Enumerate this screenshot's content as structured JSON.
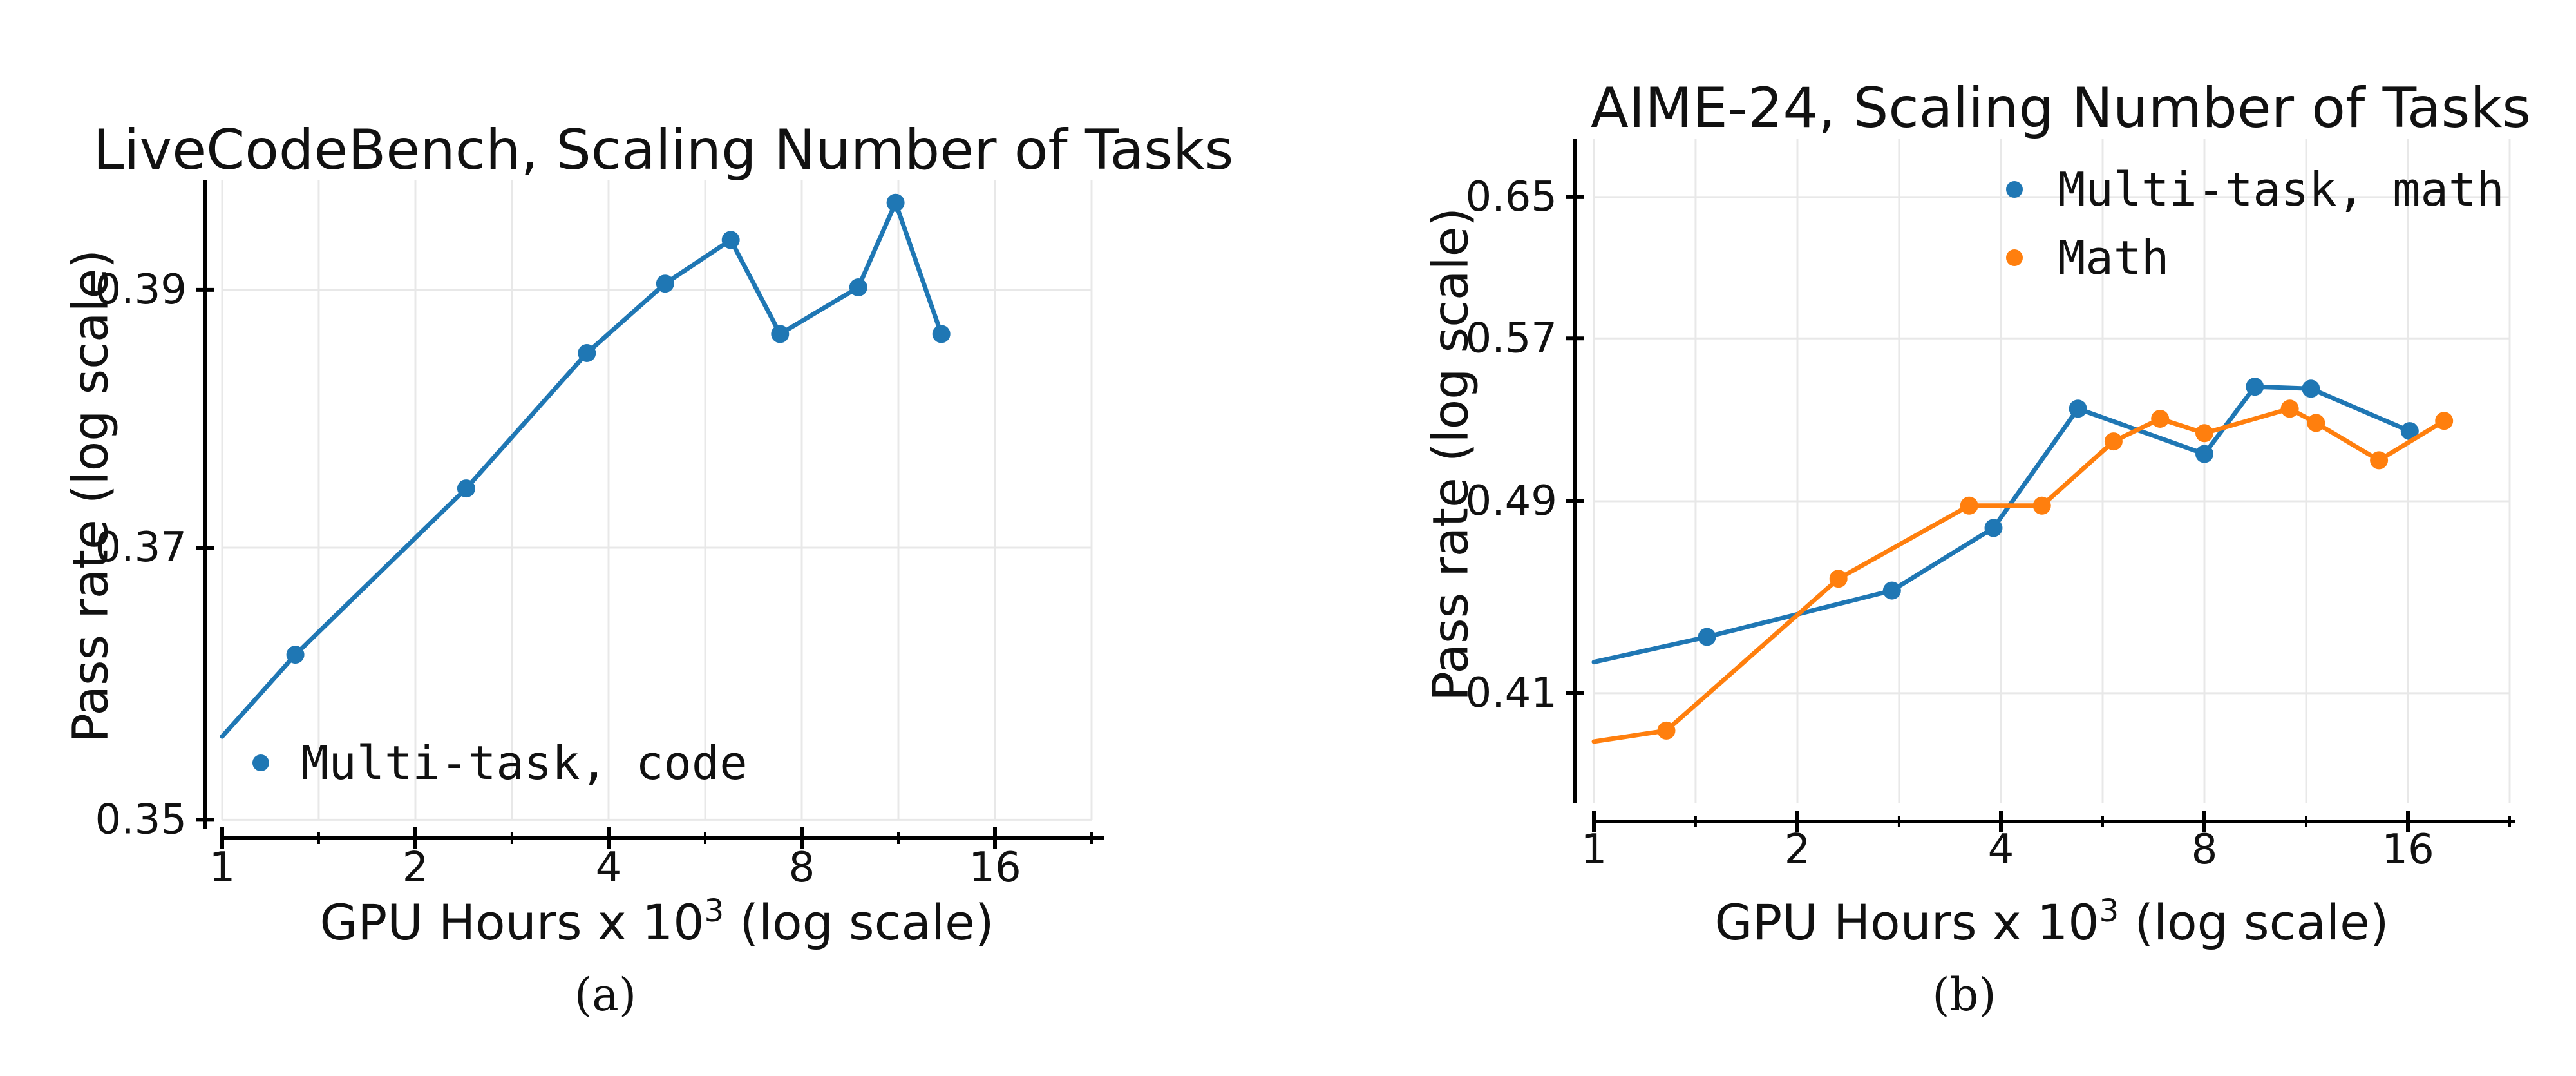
{
  "captions": {
    "a": "(a)",
    "b": "(b)"
  },
  "colors": {
    "blue": "#1f77b4",
    "orange": "#ff7f0e",
    "grid": "#e8e8e8",
    "spine": "#000000",
    "text": "#111111"
  },
  "chart_data": [
    {
      "type": "line",
      "title": "LiveCodeBench, Scaling Number of Tasks",
      "xlabel_prefix": "GPU Hours x 10",
      "xlabel_sup": "3",
      "xlabel_suffix": " (log scale)",
      "ylabel": "Pass rate (log scale)",
      "x_scale": "log2",
      "y_scale": "log",
      "xlim": [
        1,
        22.6
      ],
      "ylim": [
        0.35,
        0.399
      ],
      "grid": true,
      "x_major_ticks": [
        1,
        2,
        4,
        8,
        16
      ],
      "x_major_tick_labels": [
        "1",
        "2",
        "4",
        "8",
        "16"
      ],
      "x_minor_ticks": [
        1.414,
        2.828,
        5.657,
        11.314,
        22.627
      ],
      "x_gridlines": [
        1,
        1.414,
        2,
        2.828,
        4,
        5.657,
        8,
        11.314,
        16,
        22.627
      ],
      "y_ticks": [
        0.35,
        0.37,
        0.39
      ],
      "y_tick_labels": [
        "0.35",
        "0.37",
        "0.39"
      ],
      "y_gridlines": [
        0.35,
        0.37,
        0.39
      ],
      "legend_position": "lower-left-inside",
      "series": [
        {
          "name": "Multi-task, code",
          "color": "#1f77b4",
          "marker": "circle",
          "first_point_unmarked": true,
          "x": [
            1.0,
            1.3,
            2.4,
            3.7,
            4.9,
            6.2,
            7.4,
            9.8,
            11.2,
            13.2
          ],
          "y": [
            0.356,
            0.362,
            0.3745,
            0.385,
            0.3905,
            0.394,
            0.3865,
            0.3902,
            0.397,
            0.3865
          ]
        }
      ]
    },
    {
      "type": "line",
      "title": "AIME-24, Scaling Number of Tasks",
      "xlabel_prefix": "GPU Hours x 10",
      "xlabel_sup": "3",
      "xlabel_suffix": " (log scale)",
      "ylabel": "Pass rate (log scale)",
      "x_scale": "log2",
      "y_scale": "log",
      "xlim": [
        1,
        22.6
      ],
      "ylim": [
        0.368,
        0.68
      ],
      "grid": true,
      "x_major_ticks": [
        1,
        2,
        4,
        8,
        16
      ],
      "x_major_tick_labels": [
        "1",
        "2",
        "4",
        "8",
        "16"
      ],
      "x_minor_ticks": [
        1.414,
        2.828,
        5.657,
        11.314,
        22.627
      ],
      "x_gridlines": [
        1,
        1.414,
        2,
        2.828,
        4,
        5.657,
        8,
        11.314,
        16,
        22.627
      ],
      "y_ticks": [
        0.41,
        0.49,
        0.57,
        0.65
      ],
      "y_tick_labels": [
        "0.41",
        "0.49",
        "0.57",
        "0.65"
      ],
      "y_gridlines": [
        0.41,
        0.49,
        0.57,
        0.65
      ],
      "legend_position": "upper-right-inside",
      "series": [
        {
          "name": "Multi-task, math",
          "color": "#1f77b4",
          "marker": "circle",
          "first_point_unmarked": true,
          "x": [
            1.0,
            1.47,
            2.76,
            3.9,
            5.2,
            8.0,
            9.5,
            11.5,
            16.1
          ],
          "y": [
            0.422,
            0.432,
            0.451,
            0.478,
            0.534,
            0.512,
            0.545,
            0.544,
            0.523
          ]
        },
        {
          "name": "Math",
          "color": "#ff7f0e",
          "marker": "circle",
          "first_point_unmarked": true,
          "x": [
            1.0,
            1.28,
            2.3,
            3.59,
            4.6,
            5.87,
            6.88,
            8.0,
            10.7,
            11.7,
            14.5,
            18.1
          ],
          "y": [
            0.392,
            0.396,
            0.456,
            0.488,
            0.488,
            0.518,
            0.529,
            0.522,
            0.534,
            0.527,
            0.509,
            0.528
          ]
        }
      ]
    }
  ]
}
